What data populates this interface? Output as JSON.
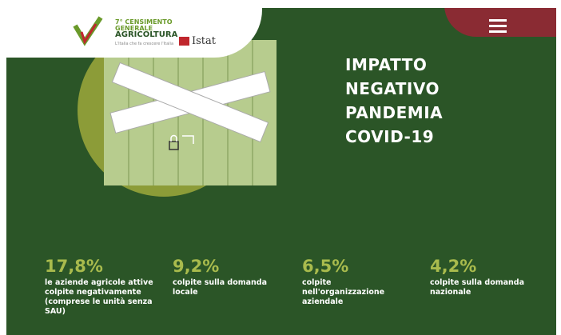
{
  "logo": {
    "line1": "7° CENSIMENTO",
    "line2": "GENERALE",
    "line3": "AGRICOLTURA",
    "tagline": "L'Italia che fa crescere l'Italia",
    "brand": "Istat"
  },
  "title": [
    "IMPATTO",
    "NEGATIVO",
    "PANDEMIA",
    "COVID-19"
  ],
  "stats": [
    {
      "value": "17,8%",
      "text": "le aziende agricole attive colpite negativamente (comprese le unità senza SAU)"
    },
    {
      "value": "9,2%",
      "text": "colpite sulla domanda locale"
    },
    {
      "value": "6,5%",
      "text": "colpite nell'organizzazione aziendale"
    },
    {
      "value": "4,2%",
      "text": "colpite sulla domanda nazionale"
    }
  ]
}
